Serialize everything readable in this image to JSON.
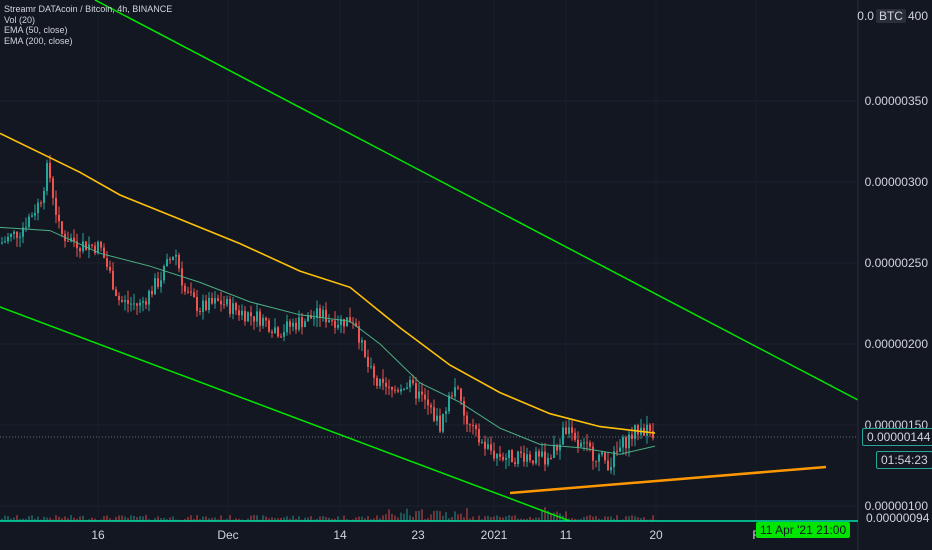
{
  "legend": {
    "title": "Streamr DATAcoin / Bitcoin, 4h, BINANCE",
    "vol": "Vol (20)",
    "ema50": "EMA (50, close)",
    "ema200": "EMA (200, close)"
  },
  "axis": {
    "currency": "BTC",
    "top_label": "0.0",
    "top_suffix": "400",
    "ticks": [
      "0.00000350",
      "0.00000300",
      "0.00000250",
      "0.00000200",
      "0.00000150",
      "0.00000100"
    ],
    "current_price": "0.00000144",
    "countdown": "01:54:23",
    "bottom_value": "0.00000094"
  },
  "x_axis": {
    "ticks": [
      "16",
      "Dec",
      "14",
      "23",
      "2021",
      "11",
      "20",
      "F"
    ],
    "cursor_date": "11 Apr '21   21:00"
  },
  "colors": {
    "background": "#131722",
    "candle_up": "#26a69a",
    "candle_down": "#ef5350",
    "ema50": "#4caf84",
    "ema200": "#ffc107",
    "channel": "#00e600",
    "support": "#ff9800",
    "price_tag": "#131722",
    "countdown_tag": "#131722",
    "cursor_tag": "#00e600"
  },
  "chart_data": {
    "type": "candlestick",
    "ylim": [
      9.4e-07,
      4e-06
    ],
    "price_path": [
      [
        0,
        2.62e-06
      ],
      [
        20,
        2.7e-06
      ],
      [
        40,
        2.88e-06
      ],
      [
        48,
        3.1e-06
      ],
      [
        60,
        2.68e-06
      ],
      [
        80,
        2.62e-06
      ],
      [
        100,
        2.6e-06
      ],
      [
        120,
        2.26e-06
      ],
      [
        140,
        2.24e-06
      ],
      [
        160,
        2.4e-06
      ],
      [
        175,
        2.58e-06
      ],
      [
        185,
        2.32e-06
      ],
      [
        200,
        2.22e-06
      ],
      [
        220,
        2.26e-06
      ],
      [
        240,
        2.2e-06
      ],
      [
        260,
        2.16e-06
      ],
      [
        280,
        2.08e-06
      ],
      [
        300,
        2.14e-06
      ],
      [
        320,
        2.18e-06
      ],
      [
        340,
        2.14e-06
      ],
      [
        355,
        2.16e-06
      ],
      [
        365,
        1.9e-06
      ],
      [
        375,
        1.76e-06
      ],
      [
        390,
        1.7e-06
      ],
      [
        405,
        1.76e-06
      ],
      [
        420,
        1.68e-06
      ],
      [
        440,
        1.5e-06
      ],
      [
        455,
        1.76e-06
      ],
      [
        465,
        1.52e-06
      ],
      [
        480,
        1.4e-06
      ],
      [
        495,
        1.32e-06
      ],
      [
        510,
        1.3e-06
      ],
      [
        525,
        1.32e-06
      ],
      [
        540,
        1.28e-06
      ],
      [
        555,
        1.34e-06
      ],
      [
        565,
        1.48e-06
      ],
      [
        575,
        1.38e-06
      ],
      [
        590,
        1.34e-06
      ],
      [
        610,
        1.26e-06
      ],
      [
        625,
        1.4e-06
      ],
      [
        640,
        1.48e-06
      ],
      [
        655,
        1.46e-06
      ]
    ],
    "ema50": [
      [
        0,
        2.72e-06
      ],
      [
        50,
        2.7e-06
      ],
      [
        100,
        2.56e-06
      ],
      [
        150,
        2.48e-06
      ],
      [
        200,
        2.38e-06
      ],
      [
        250,
        2.26e-06
      ],
      [
        300,
        2.18e-06
      ],
      [
        350,
        2.14e-06
      ],
      [
        380,
        2e-06
      ],
      [
        420,
        1.76e-06
      ],
      [
        460,
        1.64e-06
      ],
      [
        500,
        1.48e-06
      ],
      [
        540,
        1.38e-06
      ],
      [
        580,
        1.36e-06
      ],
      [
        620,
        1.32e-06
      ],
      [
        655,
        1.37e-06
      ]
    ],
    "ema200": [
      [
        0,
        3.3e-06
      ],
      [
        40,
        3.18e-06
      ],
      [
        80,
        3.06e-06
      ],
      [
        120,
        2.92e-06
      ],
      [
        180,
        2.77e-06
      ],
      [
        240,
        2.62e-06
      ],
      [
        300,
        2.45e-06
      ],
      [
        350,
        2.35e-06
      ],
      [
        400,
        2.1e-06
      ],
      [
        450,
        1.87e-06
      ],
      [
        500,
        1.7e-06
      ],
      [
        550,
        1.57e-06
      ],
      [
        600,
        1.49e-06
      ],
      [
        655,
        1.45e-06
      ]
    ]
  }
}
